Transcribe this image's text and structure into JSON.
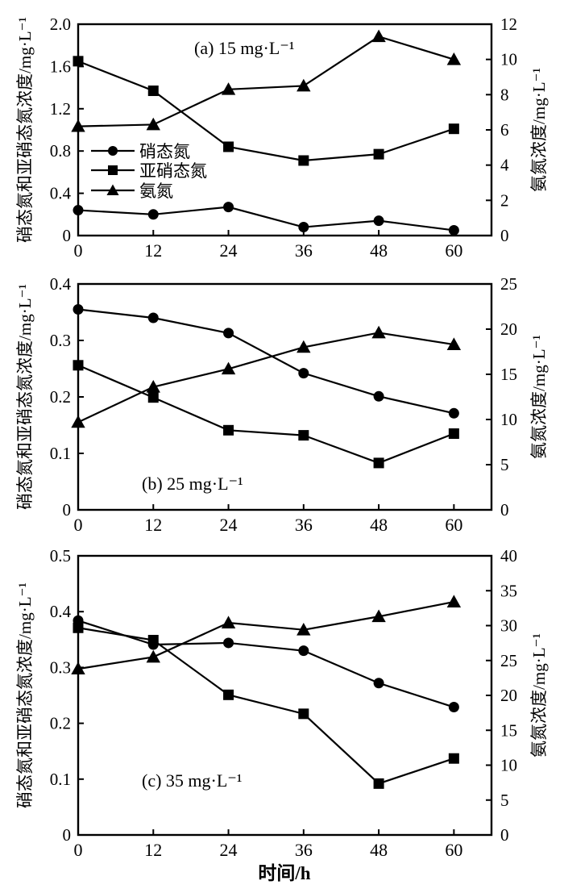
{
  "figure": {
    "xlabel": "时间/h",
    "left_axis_label": "硝态氮和亚硝态氮浓度/mg·L⁻¹",
    "right_axis_label": "氨氮浓度/mg·L⁻¹",
    "ink_color": "#000000",
    "background_color": "#ffffff",
    "legend": {
      "items": [
        {
          "label": "硝态氮",
          "marker": "circle",
          "series": "nitrate-nitrogen"
        },
        {
          "label": "亚硝态氮",
          "marker": "square",
          "series": "nitrite-nitrogen"
        },
        {
          "label": "氨氮",
          "marker": "triangle",
          "series": "ammonia-nitrogen"
        }
      ]
    }
  },
  "chart_data": [
    {
      "type": "line",
      "panel": "a",
      "title": "(a) 15 mg·L⁻¹",
      "x": [
        0,
        12,
        24,
        36,
        48,
        60
      ],
      "x_tick_labels": [
        "0",
        "12",
        "24",
        "36",
        "48",
        "60"
      ],
      "xlim": [
        0,
        66
      ],
      "xlabel": "时间/h",
      "grid": false,
      "left_axis": {
        "label": "硝态氮和亚硝态氮浓度/mg·L⁻¹",
        "lim": [
          0,
          2.0
        ],
        "ticks": [
          0,
          0.4,
          0.8,
          1.2,
          1.6,
          2.0
        ],
        "tick_labels": [
          "0",
          "0.4",
          "0.8",
          "1.2",
          "1.6",
          "2.0"
        ]
      },
      "right_axis": {
        "label": "氨氮浓度/mg·L⁻¹",
        "lim": [
          0,
          12
        ],
        "ticks": [
          0,
          2,
          4,
          6,
          8,
          10,
          12
        ],
        "tick_labels": [
          "0",
          "2",
          "4",
          "6",
          "8",
          "10",
          "12"
        ]
      },
      "series": [
        {
          "name": "硝态氮",
          "name_en": "nitrate-nitrogen",
          "marker": "circle",
          "axis": "left",
          "values": [
            0.24,
            0.2,
            0.27,
            0.08,
            0.14,
            0.05
          ]
        },
        {
          "name": "亚硝态氮",
          "name_en": "nitrite-nitrogen",
          "marker": "square",
          "axis": "left",
          "values": [
            1.65,
            1.37,
            0.84,
            0.71,
            0.77,
            1.01
          ]
        },
        {
          "name": "氨氮",
          "name_en": "ammonia-nitrogen",
          "marker": "triangle",
          "axis": "right",
          "values": [
            6.2,
            6.3,
            8.3,
            8.5,
            11.3,
            10.0
          ]
        }
      ],
      "legend_visible": true
    },
    {
      "type": "line",
      "panel": "b",
      "title": "(b) 25 mg·L⁻¹",
      "x": [
        0,
        12,
        24,
        36,
        48,
        60
      ],
      "x_tick_labels": [
        "0",
        "12",
        "24",
        "36",
        "48",
        "60"
      ],
      "xlim": [
        0,
        66
      ],
      "xlabel": "时间/h",
      "grid": false,
      "left_axis": {
        "label": "硝态氮和亚硝态氮浓度/mg·L⁻¹",
        "lim": [
          0,
          0.4
        ],
        "ticks": [
          0,
          0.1,
          0.2,
          0.3,
          0.4
        ],
        "tick_labels": [
          "0",
          "0.1",
          "0.2",
          "0.3",
          "0.4"
        ]
      },
      "right_axis": {
        "label": "氨氮浓度/mg·L⁻¹",
        "lim": [
          0,
          25
        ],
        "ticks": [
          0,
          5,
          10,
          15,
          20,
          25
        ],
        "tick_labels": [
          "0",
          "5",
          "10",
          "15",
          "20",
          "25"
        ]
      },
      "series": [
        {
          "name": "硝态氮",
          "name_en": "nitrate-nitrogen",
          "marker": "circle",
          "axis": "left",
          "values": [
            0.355,
            0.34,
            0.313,
            0.242,
            0.201,
            0.171
          ]
        },
        {
          "name": "亚硝态氮",
          "name_en": "nitrite-nitrogen",
          "marker": "square",
          "axis": "left",
          "values": [
            0.256,
            0.199,
            0.141,
            0.132,
            0.083,
            0.135
          ]
        },
        {
          "name": "氨氮",
          "name_en": "ammonia-nitrogen",
          "marker": "triangle",
          "axis": "right",
          "values": [
            9.7,
            13.6,
            15.6,
            18.0,
            19.6,
            18.3
          ]
        }
      ],
      "legend_visible": false
    },
    {
      "type": "line",
      "panel": "c",
      "title": "(c) 35 mg·L⁻¹",
      "x": [
        0,
        12,
        24,
        36,
        48,
        60
      ],
      "x_tick_labels": [
        "0",
        "12",
        "24",
        "36",
        "48",
        "60"
      ],
      "xlim": [
        0,
        66
      ],
      "xlabel": "时间/h",
      "grid": false,
      "left_axis": {
        "label": "硝态氮和亚硝态氮浓度/mg·L⁻¹",
        "lim": [
          0,
          0.5
        ],
        "ticks": [
          0,
          0.1,
          0.2,
          0.3,
          0.4,
          0.5
        ],
        "tick_labels": [
          "0",
          "0.1",
          "0.2",
          "0.3",
          "0.4",
          "0.5"
        ]
      },
      "right_axis": {
        "label": "氨氮浓度/mg·L⁻¹",
        "lim": [
          0,
          40
        ],
        "ticks": [
          0,
          5,
          10,
          15,
          20,
          25,
          30,
          35,
          40
        ],
        "tick_labels": [
          "0",
          "5",
          "10",
          "15",
          "20",
          "25",
          "30",
          "35",
          "40"
        ]
      },
      "series": [
        {
          "name": "硝态氮",
          "name_en": "nitrate-nitrogen",
          "marker": "circle",
          "axis": "left",
          "values": [
            0.384,
            0.341,
            0.344,
            0.33,
            0.272,
            0.229
          ]
        },
        {
          "name": "亚硝态氮",
          "name_en": "nitrite-nitrogen",
          "marker": "square",
          "axis": "left",
          "values": [
            0.371,
            0.349,
            0.251,
            0.217,
            0.092,
            0.137
          ]
        },
        {
          "name": "氨氮",
          "name_en": "ammonia-nitrogen",
          "marker": "triangle",
          "axis": "right",
          "values": [
            23.8,
            25.5,
            30.4,
            29.4,
            31.3,
            33.4
          ]
        }
      ],
      "legend_visible": false
    }
  ]
}
